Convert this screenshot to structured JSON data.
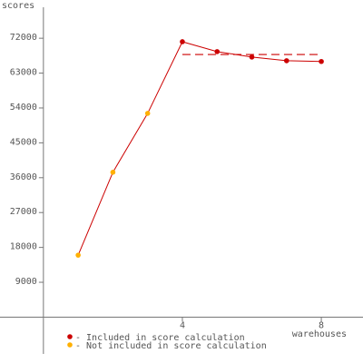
{
  "chart_data": {
    "type": "line",
    "y_label": "scores",
    "x_label": "warehouses",
    "x": [
      1,
      2,
      3,
      4,
      5,
      6,
      7,
      8
    ],
    "values": [
      16000,
      37400,
      52600,
      71100,
      68550,
      67150,
      66200,
      66000
    ],
    "line_color": "#cc0000",
    "marker_colors": [
      "#ffb000",
      "#ffb000",
      "#ffb000",
      "#cc0000",
      "#cc0000",
      "#cc0000",
      "#cc0000",
      "#cc0000"
    ],
    "score": 67800,
    "score_x": [
      4,
      8
    ],
    "score_color": "#cc0000",
    "xlim": [
      -1.25,
      9.2
    ],
    "ylim": [
      -9500,
      80000
    ],
    "xticks": [
      4,
      8
    ],
    "yticks": [
      9000,
      18000,
      27000,
      36000,
      45000,
      54000,
      63000,
      72000
    ],
    "legend": [
      {
        "label": "- Included in score calculation",
        "color": "#cc0000"
      },
      {
        "label": "- Not included in score calculation",
        "color": "#ffb000"
      }
    ]
  }
}
